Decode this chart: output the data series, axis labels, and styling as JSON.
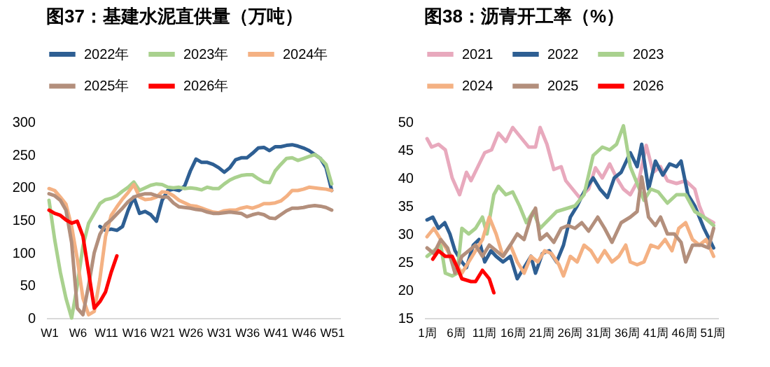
{
  "chart_data": [
    {
      "type": "line",
      "title": "图37：基建水泥直供量（万吨）",
      "legend": "top",
      "categories": [
        "W1",
        null,
        null,
        null,
        null,
        "W6",
        null,
        null,
        null,
        null,
        "W11",
        null,
        null,
        null,
        null,
        "W16",
        null,
        null,
        null,
        null,
        "W21",
        null,
        null,
        null,
        null,
        "W26",
        null,
        null,
        null,
        null,
        "W31",
        null,
        null,
        null,
        null,
        "W36",
        null,
        null,
        null,
        null,
        "W41",
        null,
        null,
        null,
        null,
        "W46",
        null,
        null,
        null,
        null,
        "W51",
        null
      ],
      "ylim": [
        0,
        300
      ],
      "yticks": [
        0,
        50,
        100,
        150,
        200,
        250,
        300
      ],
      "series": [
        {
          "name": "2022年",
          "color": "#2e5f93",
          "values": [
            null,
            null,
            null,
            null,
            null,
            null,
            null,
            null,
            null,
            140,
            134,
            136,
            134,
            140,
            165,
            185,
            160,
            163,
            158,
            148,
            180,
            195,
            197,
            195,
            202,
            225,
            243,
            238,
            238,
            235,
            230,
            223,
            230,
            242,
            245,
            245,
            252,
            260,
            261,
            256,
            262,
            262,
            264,
            265,
            263,
            260,
            256,
            250,
            244,
            230,
            195,
            null
          ]
        },
        {
          "name": "2023年",
          "color": "#a9d18e",
          "values": [
            180,
            120,
            70,
            30,
            0,
            50,
            110,
            145,
            160,
            175,
            181,
            183,
            187,
            194,
            200,
            208,
            195,
            199,
            203,
            205,
            204,
            200,
            199,
            200,
            198,
            199,
            198,
            196,
            200,
            198,
            198,
            205,
            211,
            215,
            218,
            219,
            219,
            213,
            208,
            207,
            225,
            235,
            244,
            245,
            241,
            244,
            247,
            250,
            244,
            235,
            205,
            null
          ]
        },
        {
          "name": "2024年",
          "color": "#f4b183",
          "values": [
            198,
            195,
            185,
            174,
            140,
            90,
            30,
            5,
            10,
            60,
            125,
            157,
            170,
            182,
            192,
            204,
            185,
            181,
            182,
            185,
            193,
            192,
            187,
            180,
            176,
            172,
            171,
            168,
            165,
            162,
            161,
            164,
            165,
            165,
            168,
            170,
            168,
            171,
            175,
            175,
            176,
            179,
            186,
            195,
            195,
            197,
            200,
            199,
            198,
            197,
            195,
            null
          ]
        },
        {
          "name": "2025年",
          "color": "#b38f7c",
          "values": [
            190,
            187,
            180,
            165,
            115,
            15,
            5,
            50,
            100,
            128,
            143,
            150,
            159,
            168,
            178,
            185,
            188,
            190,
            190,
            187,
            185,
            185,
            176,
            170,
            169,
            168,
            166,
            165,
            162,
            160,
            160,
            161,
            162,
            161,
            160,
            155,
            158,
            160,
            158,
            153,
            152,
            158,
            164,
            168,
            168,
            169,
            171,
            172,
            171,
            169,
            165,
            null
          ]
        },
        {
          "name": "2026年",
          "color": "#ff0000",
          "values": [
            165,
            160,
            157,
            150,
            145,
            148,
            125,
            70,
            15,
            25,
            40,
            70,
            95,
            null,
            null,
            null,
            null,
            null,
            null,
            null,
            null,
            null,
            null,
            null,
            null,
            null,
            null,
            null,
            null,
            null,
            null,
            null,
            null,
            null,
            null,
            null,
            null,
            null,
            null,
            null,
            null,
            null,
            null,
            null,
            null,
            null,
            null,
            null,
            null,
            null,
            null,
            null
          ]
        }
      ]
    },
    {
      "type": "line",
      "title": "图38：沥青开工率（%）",
      "legend": "top",
      "xlim": [
        0.5,
        52
      ],
      "xticks": [
        {
          "value": 1,
          "label": "1周"
        },
        {
          "value": 6,
          "label": "6周"
        },
        {
          "value": 11,
          "label": "11周"
        },
        {
          "value": 16,
          "label": "16周"
        },
        {
          "value": 21,
          "label": "21周"
        },
        {
          "value": 26,
          "label": "26周"
        },
        {
          "value": 31,
          "label": "31周"
        },
        {
          "value": 36,
          "label": "36周"
        },
        {
          "value": 41,
          "label": "41周"
        },
        {
          "value": 46,
          "label": "46周"
        },
        {
          "value": 51,
          "label": "51周"
        }
      ],
      "ylim": [
        15,
        50
      ],
      "yticks": [
        15,
        20,
        25,
        30,
        35,
        40,
        45,
        50
      ],
      "series": [
        {
          "name": "2021",
          "color": "#e8a9bd",
          "x": [
            1,
            1.8,
            3,
            4.2,
            5.4,
            6.7,
            7.9,
            8.7,
            9.9,
            11.1,
            12.3,
            13.5,
            14.8,
            16,
            17.2,
            18.8,
            20,
            20.8,
            22,
            23.2,
            24.5,
            25.3,
            26.5,
            27.7,
            29.3,
            30.5,
            31.7,
            33,
            34.2,
            35.4,
            36.6,
            38.2,
            39.4,
            40.6,
            41.9,
            43.1,
            44.7,
            46.3,
            47.9,
            48.7,
            49.5,
            51.2
          ],
          "values": [
            47,
            45.5,
            46,
            45,
            40,
            37,
            41,
            39.5,
            42,
            44.5,
            45,
            48,
            46.5,
            49,
            47.5,
            45.5,
            45.5,
            49,
            46,
            41.5,
            42,
            39.5,
            38,
            36.5,
            38,
            41.8,
            40,
            42.5,
            40,
            38,
            37,
            40,
            45.8,
            41,
            42,
            39.5,
            39,
            39.5,
            38,
            35,
            33,
            32
          ]
        },
        {
          "name": "2022",
          "color": "#2e5f93",
          "x": [
            1,
            2,
            3,
            4.1,
            5,
            5.9,
            7.1,
            7.9,
            9.1,
            10.1,
            11.1,
            12.2,
            13.1,
            14.3,
            15.6,
            16.8,
            18,
            19.2,
            20,
            21.2,
            22.4,
            23.7,
            24.9,
            26.1,
            27.3,
            28.5,
            30.1,
            31.3,
            32.6,
            33.8,
            35,
            36.6,
            37.8,
            38.6,
            39.8,
            41,
            42.3,
            43.5,
            44.7,
            45.5,
            46.7,
            47.9,
            49.5,
            51.2
          ],
          "values": [
            32.5,
            33,
            31,
            32,
            30,
            27,
            25,
            24,
            28,
            29,
            25,
            27,
            26,
            25,
            26,
            22,
            24,
            26,
            23,
            26.5,
            27,
            25,
            28,
            33,
            35,
            37.5,
            40,
            38,
            36.5,
            40,
            41,
            44.5,
            42,
            46,
            38,
            43,
            40.5,
            42.5,
            42,
            43,
            37,
            35,
            31,
            27.5
          ]
        },
        {
          "name": "2023",
          "color": "#a9d18e",
          "x": [
            1,
            2.2,
            3.4,
            4.2,
            5.4,
            6.3,
            7.1,
            8.3,
            9.5,
            10.7,
            11.5,
            12.7,
            13.5,
            14.8,
            16,
            17.2,
            18.4,
            19.6,
            20.8,
            23.7,
            25.3,
            26.9,
            28.5,
            30.1,
            31.7,
            33,
            34.2,
            35.4,
            36.6,
            37.8,
            39,
            40.2,
            41.5,
            43.1,
            44.7,
            46.3,
            47.9,
            49.5,
            51.2
          ],
          "values": [
            26,
            27,
            28,
            23,
            22.5,
            23,
            31,
            30,
            31,
            33,
            30,
            37,
            38.5,
            37,
            37.5,
            35,
            32,
            34,
            31,
            34,
            34.5,
            35,
            37,
            44,
            45.5,
            45,
            46,
            49.3,
            42,
            39,
            36,
            38,
            37.5,
            35.5,
            37,
            37,
            34,
            33,
            31.5
          ]
        },
        {
          "name": "2024",
          "color": "#f4b183",
          "x": [
            1,
            2.2,
            3.4,
            4.6,
            5.9,
            7.1,
            8.3,
            9.5,
            10.7,
            11.9,
            13.1,
            14.3,
            15.6,
            16.8,
            18,
            19.2,
            20.4,
            21.6,
            22.8,
            24.1,
            24.9,
            26.1,
            27.3,
            28.5,
            29.7,
            30.9,
            32.1,
            33.4,
            34.6,
            35.8,
            36.6,
            37.8,
            39,
            40.2,
            41.5,
            42.7,
            43.9,
            45.1,
            46.3,
            47.5,
            48.7,
            49.9,
            51.2
          ],
          "values": [
            29.5,
            31,
            29,
            27,
            25,
            23,
            25,
            27,
            29,
            33,
            30,
            26,
            28,
            25,
            23,
            26,
            25,
            27,
            26.5,
            24.5,
            22.5,
            26,
            25,
            28,
            27,
            25,
            27,
            25,
            26,
            28,
            25,
            24.5,
            25,
            28,
            27.5,
            29,
            27,
            31,
            32,
            29,
            28,
            29,
            26
          ]
        },
        {
          "name": "2025",
          "color": "#b38f7c",
          "x": [
            1,
            2.2,
            3.4,
            4.6,
            5.9,
            7.1,
            8.3,
            9.5,
            10.7,
            11.9,
            13.1,
            14.3,
            15.6,
            16.8,
            18,
            19.2,
            20,
            20.8,
            22,
            23.2,
            24.5,
            25.7,
            26.9,
            28.1,
            29.3,
            30.9,
            32.1,
            33.4,
            35,
            36.6,
            37.8,
            38.6,
            39.8,
            41,
            41.9,
            43.1,
            44.3,
            45.5,
            46.3,
            47.5,
            49.1,
            50.3,
            51.2
          ],
          "values": [
            27.5,
            26.5,
            29,
            27.5,
            23,
            26,
            27,
            28,
            26,
            28,
            27,
            26,
            28,
            30,
            29,
            33,
            34.6,
            29,
            30,
            28.5,
            31,
            31.5,
            31,
            32,
            30.5,
            33,
            31,
            28.5,
            32,
            33,
            34,
            40.2,
            33,
            31.5,
            33,
            30,
            30,
            28.5,
            25,
            28,
            28,
            27.5,
            31
          ]
        },
        {
          "name": "2026",
          "color": "#ff0000",
          "x": [
            2,
            3,
            4.2,
            5.4,
            6.3,
            7.1,
            8.7,
            9.5,
            10.7,
            11.9,
            12.7
          ],
          "values": [
            25.5,
            27,
            26,
            26,
            24,
            22,
            21.5,
            21.5,
            23.5,
            22,
            19.5
          ]
        }
      ]
    }
  ]
}
